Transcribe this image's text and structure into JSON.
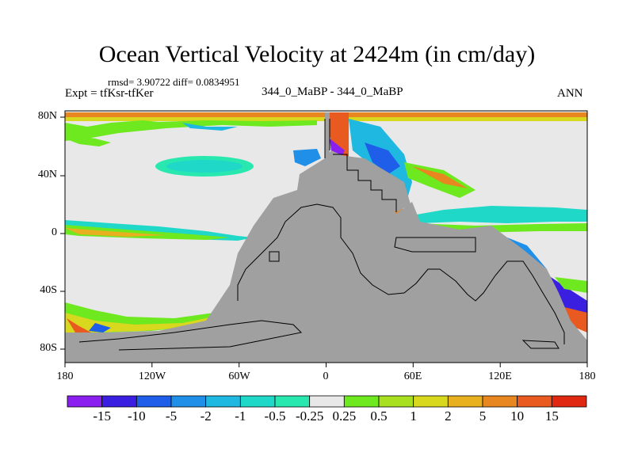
{
  "chart_data": {
    "type": "heatmap",
    "title": "Ocean Vertical Velocity at 2424m (in cm/day)",
    "stats": "rmsd= 3.90722 diff= 0.0834951",
    "left_label": "Expt = tfKsr-tfKer",
    "center_label": "344_0_MaBP - 344_0_MaBP",
    "right_label": "ANN",
    "x_ticks": [
      "180",
      "120W",
      "60W",
      "0",
      "60E",
      "120E",
      "180"
    ],
    "y_ticks": [
      "80N",
      "40N",
      "0",
      "40S",
      "80S"
    ],
    "xlim": [
      -180,
      180
    ],
    "ylim": [
      -90,
      90
    ],
    "colorbar": {
      "labels": [
        "-15",
        "-10",
        "-5",
        "-2",
        "-1",
        "-0.5",
        "-0.25",
        "0.25",
        "0.5",
        "1",
        "2",
        "5",
        "10",
        "15"
      ],
      "colors": [
        "#8a1ff0",
        "#3b1fe0",
        "#1f5ee8",
        "#1f8fe8",
        "#1fb8e0",
        "#1fd8c8",
        "#28e8b0",
        "#e8e8e8",
        "#6ee81f",
        "#a8e01f",
        "#d8d81f",
        "#e8b01f",
        "#e8861f",
        "#e85a1f",
        "#e02810"
      ]
    },
    "land_color": "#a0a0a0"
  }
}
